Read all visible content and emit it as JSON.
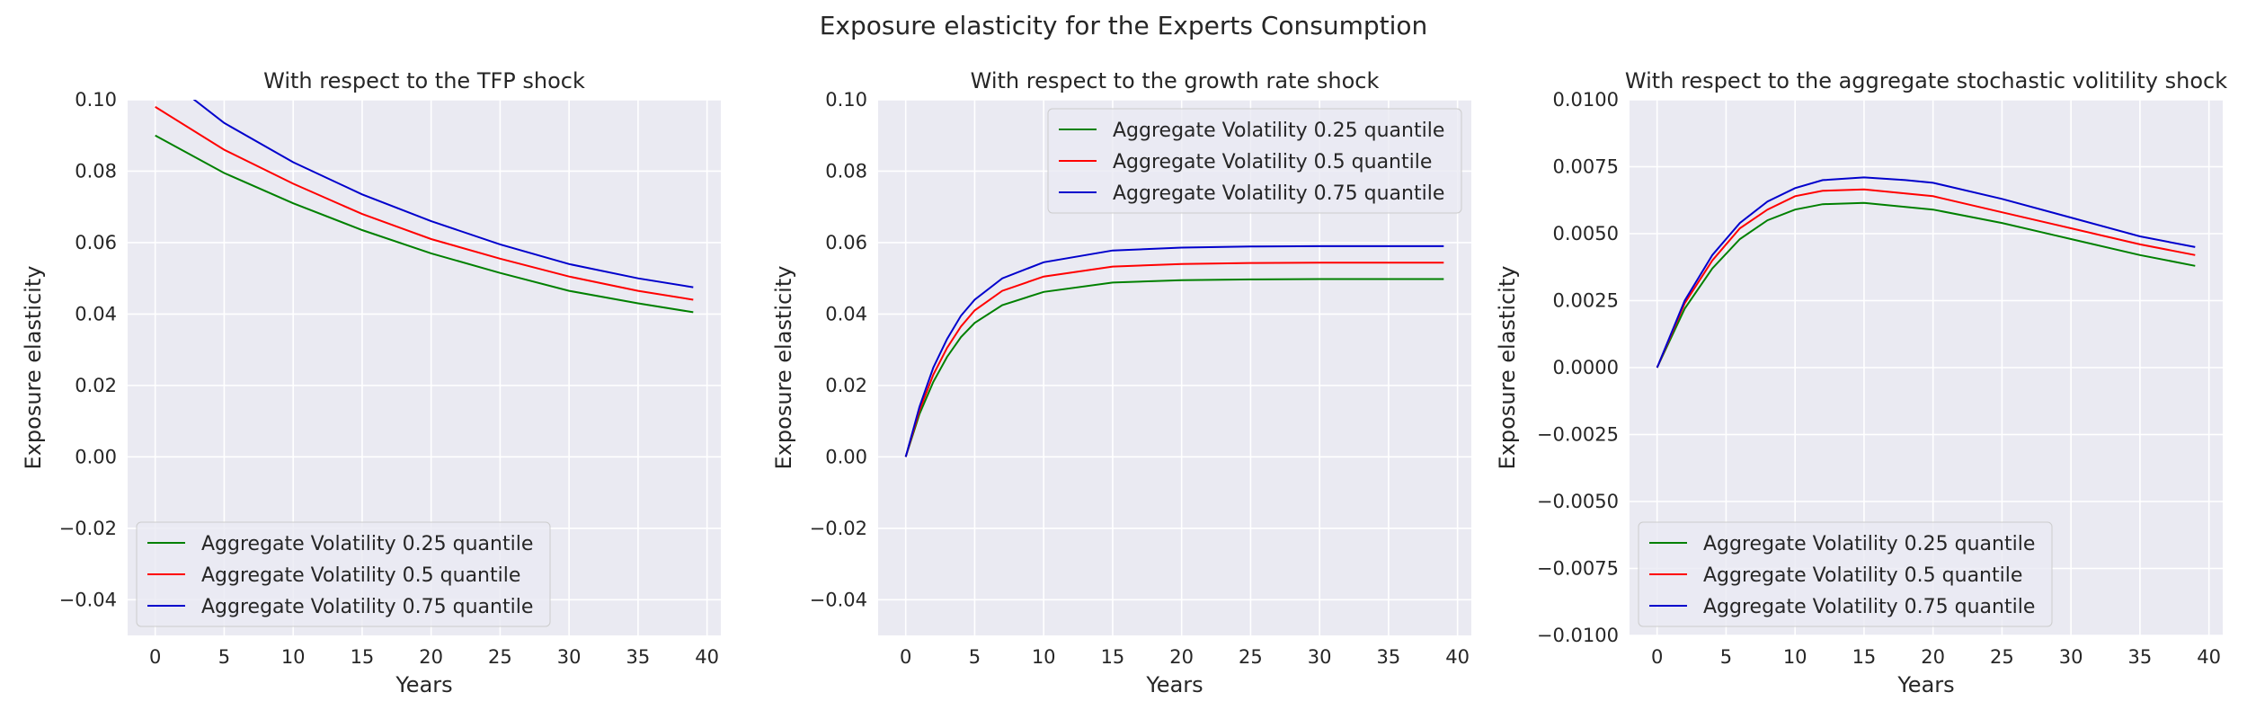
{
  "figure": {
    "suptitle": "Exposure elasticity for the Experts Consumption"
  },
  "chart_data": [
    {
      "type": "line",
      "title": "With respect to the TFP shock",
      "xlabel": "Years",
      "ylabel": "Exposure elasticity",
      "xlim": [
        -2,
        41
      ],
      "ylim": [
        -0.05,
        0.1
      ],
      "xticks": [
        0,
        5,
        10,
        15,
        20,
        25,
        30,
        35,
        40
      ],
      "xtick_labels": [
        "0",
        "5",
        "10",
        "15",
        "20",
        "25",
        "30",
        "35",
        "40"
      ],
      "yticks": [
        -0.04,
        -0.02,
        0.0,
        0.02,
        0.04,
        0.06,
        0.08,
        0.1
      ],
      "ytick_labels": [
        "−0.04",
        "−0.02",
        "0.00",
        "0.02",
        "0.04",
        "0.06",
        "0.08",
        "0.10"
      ],
      "legend_position": "lower-left",
      "grid": true,
      "x": [
        0,
        5,
        10,
        15,
        20,
        25,
        30,
        35,
        39
      ],
      "series": [
        {
          "name": "Aggregate Volatility 0.25 quantile",
          "color": "#008000",
          "values": [
            0.09,
            0.0795,
            0.071,
            0.0635,
            0.057,
            0.0515,
            0.0465,
            0.043,
            0.0405
          ]
        },
        {
          "name": "Aggregate Volatility 0.5 quantile",
          "color": "#ff0000",
          "values": [
            0.098,
            0.086,
            0.0765,
            0.068,
            0.061,
            0.0555,
            0.0505,
            0.0465,
            0.044
          ]
        },
        {
          "name": "Aggregate Volatility 0.75 quantile",
          "color": "#0000cc",
          "values": [
            0.1085,
            0.0935,
            0.0825,
            0.0735,
            0.066,
            0.0595,
            0.054,
            0.05,
            0.0475
          ]
        }
      ]
    },
    {
      "type": "line",
      "title": "With respect to the growth rate shock",
      "xlabel": "Years",
      "ylabel": "Exposure elasticity",
      "xlim": [
        -2,
        41
      ],
      "ylim": [
        -0.05,
        0.1
      ],
      "xticks": [
        0,
        5,
        10,
        15,
        20,
        25,
        30,
        35,
        40
      ],
      "xtick_labels": [
        "0",
        "5",
        "10",
        "15",
        "20",
        "25",
        "30",
        "35",
        "40"
      ],
      "yticks": [
        -0.04,
        -0.02,
        0.0,
        0.02,
        0.04,
        0.06,
        0.08,
        0.1
      ],
      "ytick_labels": [
        "−0.04",
        "−0.02",
        "0.00",
        "0.02",
        "0.04",
        "0.06",
        "0.08",
        "0.10"
      ],
      "legend_position": "upper-right",
      "grid": true,
      "x": [
        0,
        1,
        2,
        3,
        4,
        5,
        7,
        10,
        15,
        20,
        25,
        30,
        35,
        39
      ],
      "series": [
        {
          "name": "Aggregate Volatility 0.25 quantile",
          "color": "#008000",
          "values": [
            0.0,
            0.012,
            0.021,
            0.028,
            0.0335,
            0.0375,
            0.0425,
            0.0462,
            0.0488,
            0.0495,
            0.0497,
            0.0498,
            0.0498,
            0.0498
          ]
        },
        {
          "name": "Aggregate Volatility 0.5 quantile",
          "color": "#ff0000",
          "values": [
            0.0,
            0.013,
            0.023,
            0.0305,
            0.0365,
            0.041,
            0.0465,
            0.0505,
            0.0533,
            0.054,
            0.0543,
            0.0544,
            0.0544,
            0.0544
          ]
        },
        {
          "name": "Aggregate Volatility 0.75 quantile",
          "color": "#0000cc",
          "values": [
            0.0,
            0.014,
            0.025,
            0.033,
            0.0395,
            0.044,
            0.05,
            0.0545,
            0.0578,
            0.0586,
            0.0589,
            0.059,
            0.059,
            0.059
          ]
        }
      ]
    },
    {
      "type": "line",
      "title": "With respect to the aggregate stochastic volitility shock",
      "xlabel": "Years",
      "ylabel": "Exposure elasticity",
      "xlim": [
        -2,
        41
      ],
      "ylim": [
        -0.01,
        0.01
      ],
      "xticks": [
        0,
        5,
        10,
        15,
        20,
        25,
        30,
        35,
        40
      ],
      "xtick_labels": [
        "0",
        "5",
        "10",
        "15",
        "20",
        "25",
        "30",
        "35",
        "40"
      ],
      "yticks": [
        -0.01,
        -0.0075,
        -0.005,
        -0.0025,
        0.0,
        0.0025,
        0.005,
        0.0075,
        0.01
      ],
      "ytick_labels": [
        "−0.0100",
        "−0.0075",
        "−0.0050",
        "−0.0025",
        "0.0000",
        "0.0025",
        "0.0050",
        "0.0075",
        "0.0100"
      ],
      "legend_position": "lower-left",
      "grid": true,
      "x": [
        0,
        2,
        4,
        6,
        8,
        10,
        12,
        15,
        18,
        20,
        25,
        30,
        35,
        39
      ],
      "series": [
        {
          "name": "Aggregate Volatility 0.25 quantile",
          "color": "#008000",
          "values": [
            0.0,
            0.0022,
            0.0037,
            0.0048,
            0.0055,
            0.0059,
            0.0061,
            0.00615,
            0.006,
            0.0059,
            0.0054,
            0.0048,
            0.0042,
            0.0038
          ]
        },
        {
          "name": "Aggregate Volatility 0.5 quantile",
          "color": "#ff0000",
          "values": [
            0.0,
            0.0024,
            0.004,
            0.0052,
            0.0059,
            0.0064,
            0.0066,
            0.00665,
            0.0065,
            0.0064,
            0.0058,
            0.0052,
            0.0046,
            0.0042
          ]
        },
        {
          "name": "Aggregate Volatility 0.75 quantile",
          "color": "#0000cc",
          "values": [
            0.0,
            0.0025,
            0.0042,
            0.0054,
            0.0062,
            0.0067,
            0.007,
            0.0071,
            0.007,
            0.0069,
            0.0063,
            0.0056,
            0.0049,
            0.0045
          ]
        }
      ]
    }
  ]
}
